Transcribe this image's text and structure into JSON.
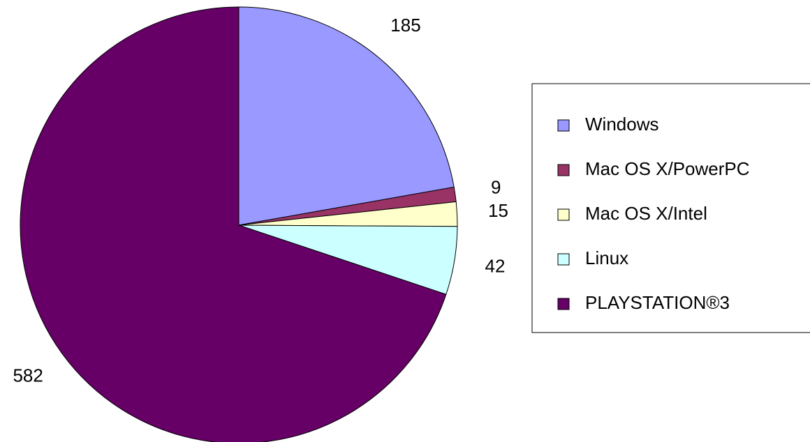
{
  "chart_data": {
    "type": "pie",
    "categories": [
      "Windows",
      "Mac OS X/PowerPC",
      "Mac OS X/Intel",
      "Linux",
      "PLAYSTATION®3"
    ],
    "values": [
      185,
      9,
      15,
      42,
      582
    ],
    "colors": [
      "#9999ff",
      "#993366",
      "#ffffcc",
      "#ccffff",
      "#660066"
    ],
    "legend": "right"
  }
}
